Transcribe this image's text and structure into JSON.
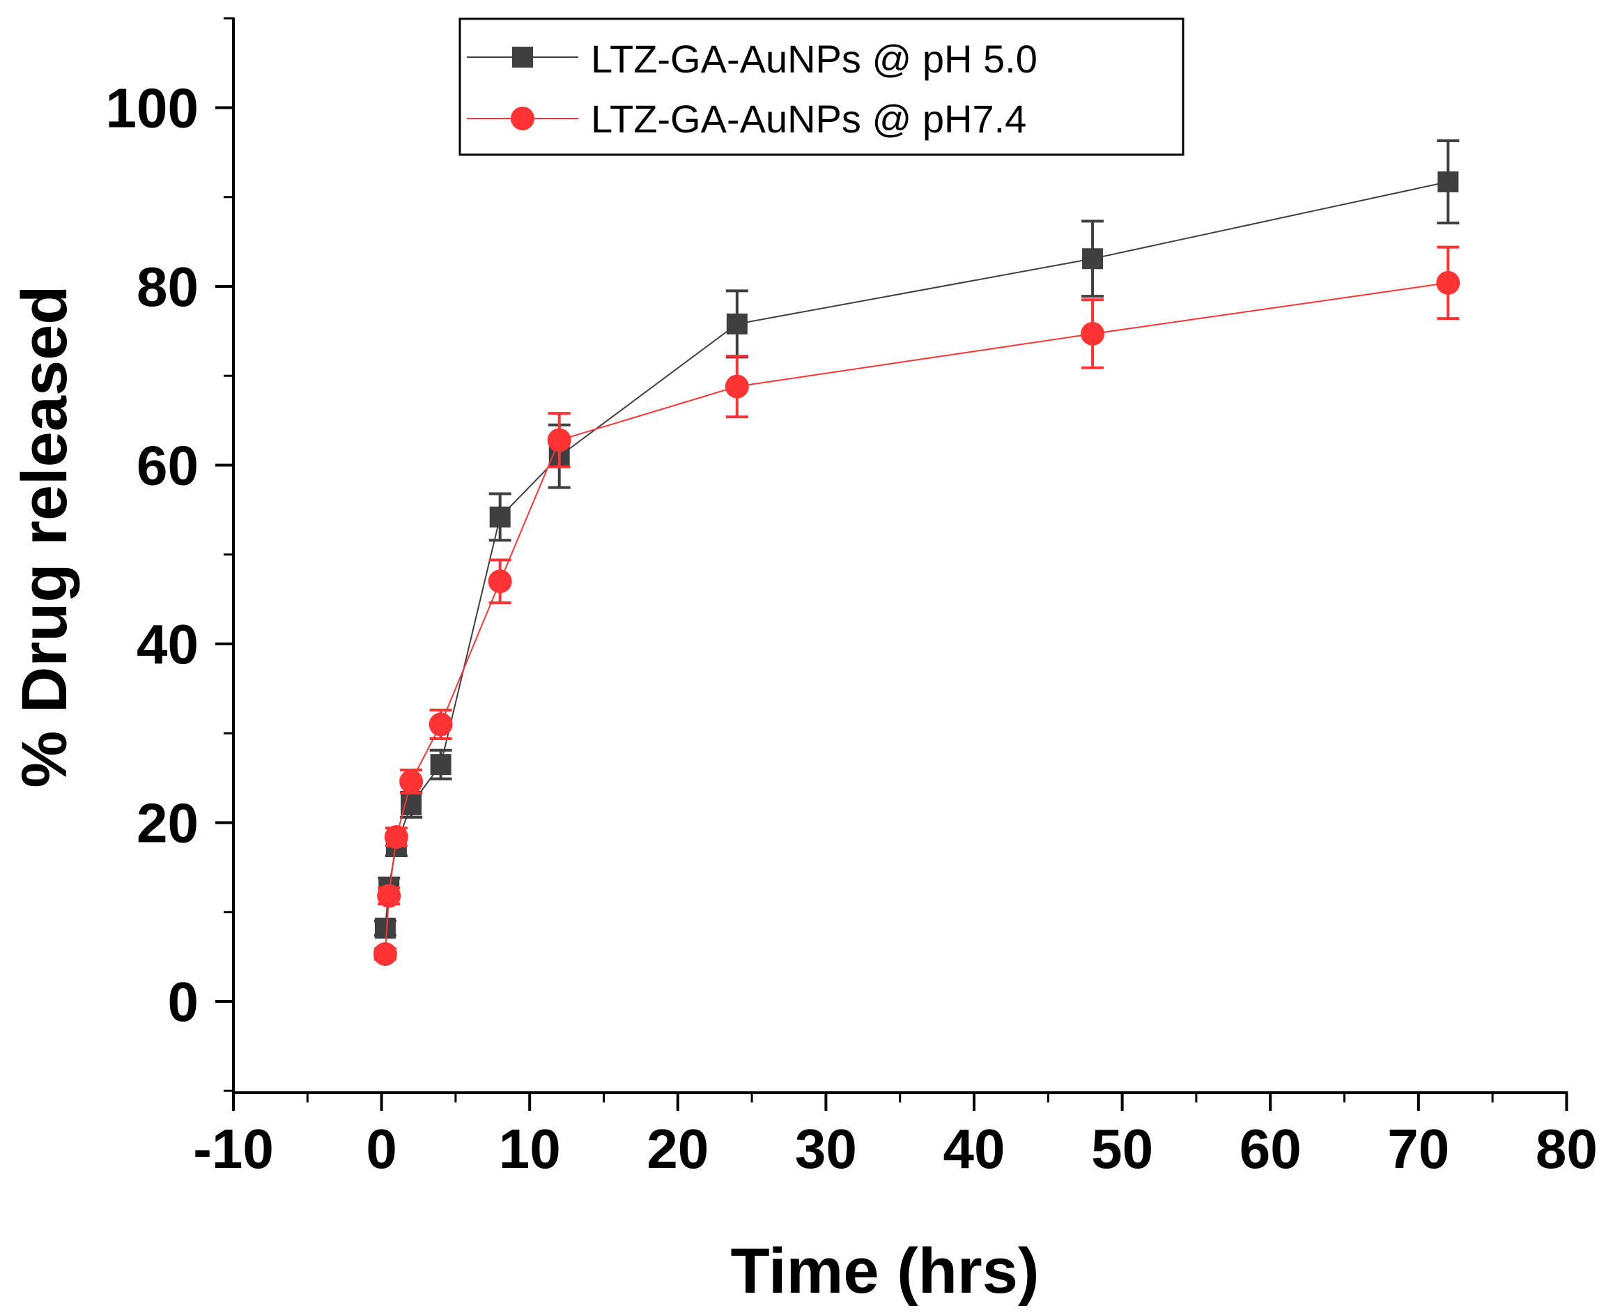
{
  "chart_data": {
    "type": "line",
    "title": "",
    "xlabel": "Time (hrs)",
    "ylabel": "% Drug released",
    "xlim": [
      -10,
      80
    ],
    "ylim": [
      -10,
      110
    ],
    "xticks": [
      -10,
      0,
      10,
      20,
      30,
      40,
      50,
      60,
      70,
      80
    ],
    "yticks": [
      0,
      20,
      40,
      60,
      80,
      100
    ],
    "x_tick_labels": [
      "-10",
      "0",
      "10",
      "20",
      "30",
      "40",
      "50",
      "60",
      "70",
      "80"
    ],
    "y_tick_labels": [
      "0",
      "20",
      "40",
      "60",
      "80",
      "100"
    ],
    "grid": false,
    "legend_position": "top-center",
    "series": [
      {
        "name": "LTZ-GA-AuNPs @ pH 5.0",
        "color": "#3f3f3f",
        "marker": "square",
        "x": [
          0.25,
          0.5,
          1,
          2,
          4,
          8,
          12,
          24,
          48,
          72
        ],
        "y": [
          8.2,
          12.8,
          17.5,
          22.0,
          26.5,
          54.2,
          61.0,
          75.8,
          83.1,
          91.7
        ],
        "error": [
          0.8,
          1.0,
          1.2,
          1.4,
          1.6,
          2.6,
          3.5,
          3.7,
          4.2,
          4.6
        ]
      },
      {
        "name": "LTZ-GA-AuNPs @ pH7.4",
        "color": "#ff3333",
        "marker": "circle",
        "x": [
          0.25,
          0.5,
          1,
          2,
          4,
          8,
          12,
          24,
          48,
          72
        ],
        "y": [
          5.3,
          11.8,
          18.4,
          24.6,
          31.0,
          47.0,
          62.8,
          68.8,
          74.7,
          80.4
        ],
        "error": [
          0.6,
          0.9,
          1.0,
          1.3,
          1.6,
          2.4,
          3.0,
          3.4,
          3.8,
          4.0
        ]
      }
    ]
  }
}
